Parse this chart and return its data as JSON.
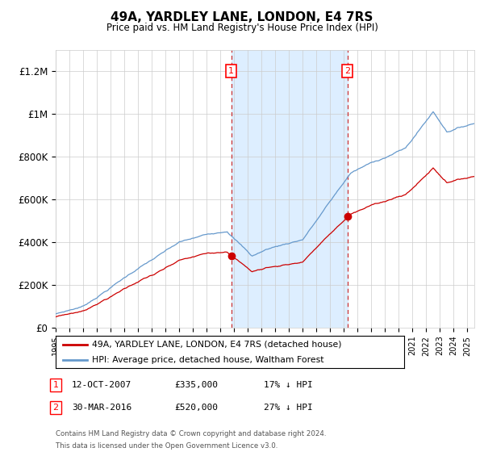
{
  "title": "49A, YARDLEY LANE, LONDON, E4 7RS",
  "subtitle": "Price paid vs. HM Land Registry's House Price Index (HPI)",
  "ylim": [
    0,
    1300000
  ],
  "xlim_start": 1995.0,
  "xlim_end": 2025.5,
  "yticks": [
    0,
    200000,
    400000,
    600000,
    800000,
    1000000,
    1200000
  ],
  "ytick_labels": [
    "£0",
    "£200K",
    "£400K",
    "£600K",
    "£800K",
    "£1M",
    "£1.2M"
  ],
  "sale1_year": 2007.79,
  "sale1_price": 335000,
  "sale2_year": 2016.25,
  "sale2_price": 520000,
  "legend_property": "49A, YARDLEY LANE, LONDON, E4 7RS (detached house)",
  "legend_hpi": "HPI: Average price, detached house, Waltham Forest",
  "footnote_line1": "Contains HM Land Registry data © Crown copyright and database right 2024.",
  "footnote_line2": "This data is licensed under the Open Government Licence v3.0.",
  "annot1_date": "12-OCT-2007",
  "annot1_price": "£335,000",
  "annot1_pct": "17% ↓ HPI",
  "annot2_date": "30-MAR-2016",
  "annot2_price": "£520,000",
  "annot2_pct": "27% ↓ HPI",
  "property_color": "#cc0000",
  "hpi_color": "#6699cc",
  "shade_color": "#ddeeff",
  "grid_color": "#cccccc",
  "bg_color": "#ffffff"
}
